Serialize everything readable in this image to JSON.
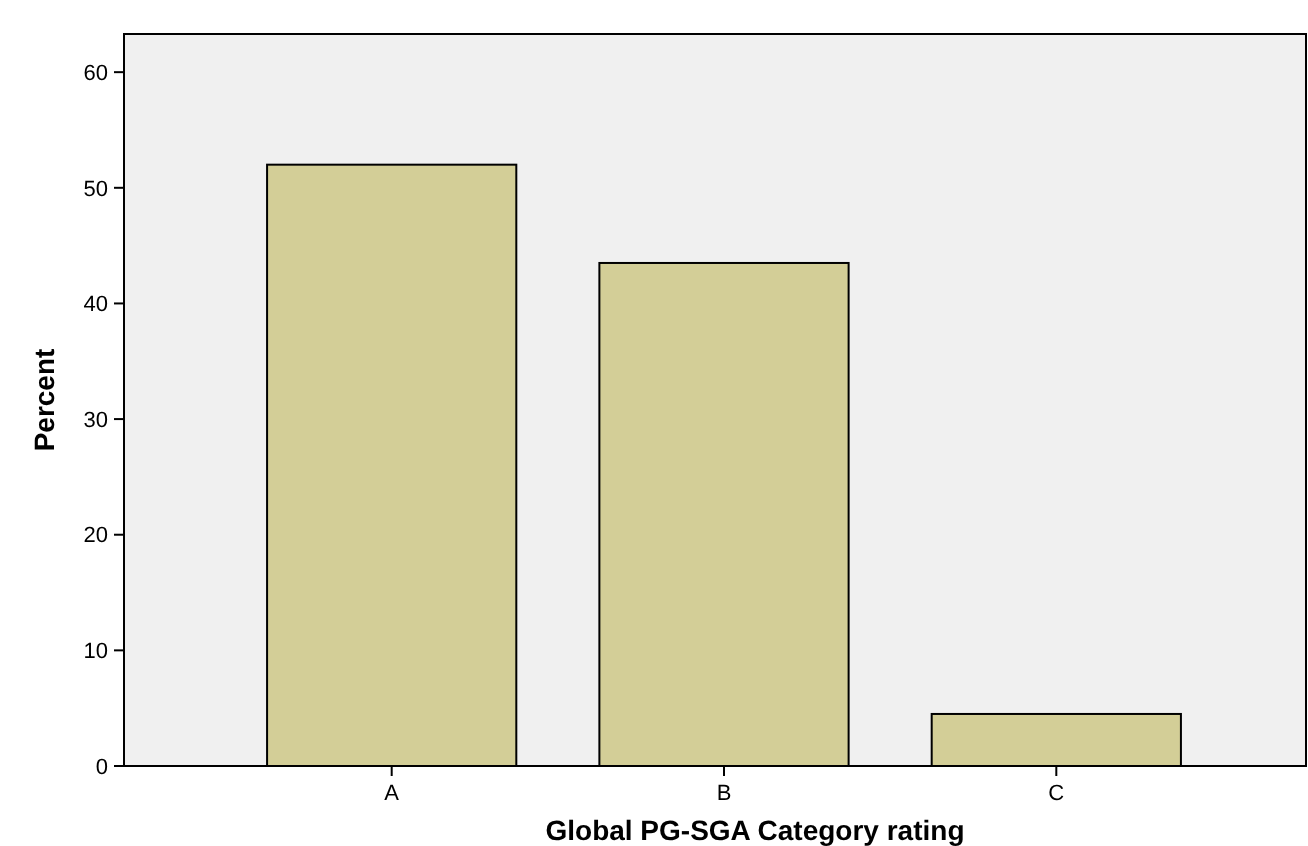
{
  "chart_data": {
    "type": "bar",
    "xlabel": "Global PG-SGA Category rating",
    "ylabel": "Percent",
    "categories": [
      "A",
      "B",
      "C"
    ],
    "values": [
      52,
      43.5,
      4.5
    ],
    "color": "#d3ce97",
    "ylim": [
      0,
      63.3
    ],
    "yticks": [
      0,
      10,
      20,
      30,
      40,
      50,
      60
    ],
    "grid": false
  }
}
